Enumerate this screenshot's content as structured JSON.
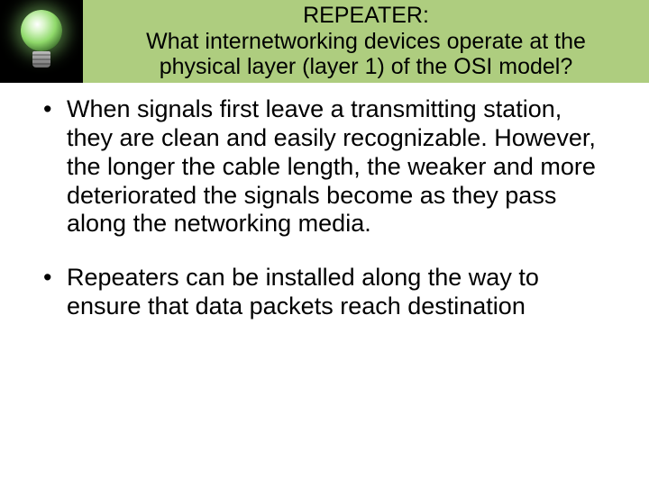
{
  "header": {
    "background_color": "#aecd7f",
    "icon_box_color": "#000000",
    "title_line1": "REPEATER:",
    "title_line2": "What internetworking devices operate at the",
    "title_line3": "physical layer (layer 1) of the OSI model?",
    "title_color": "#000000",
    "title_fontsize": 25
  },
  "bullets": [
    "When signals first leave a transmitting station, they are clean and easily recognizable. However, the longer the cable length, the weaker and more deteriorated the signals become as they pass along the networking media.",
    "Repeaters can be installed along the way to ensure that data packets reach destination"
  ],
  "body": {
    "text_color": "#000000",
    "fontsize": 27,
    "background_color": "#ffffff"
  }
}
